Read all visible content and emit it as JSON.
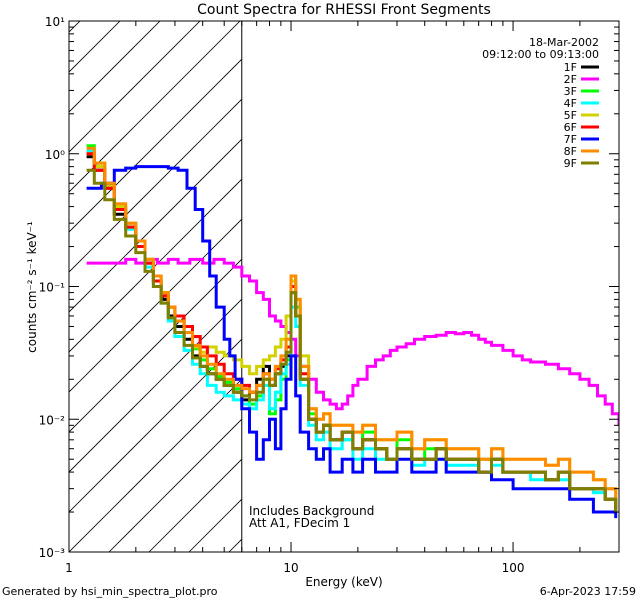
{
  "chart_data": {
    "type": "line",
    "title": "Count Spectra for RHESSI Front Segments",
    "xlabel": "Energy (keV)",
    "ylabel": "counts cm⁻² s⁻¹ keV⁻¹",
    "xscale": "log",
    "yscale": "log",
    "xlim": [
      1,
      300
    ],
    "ylim": [
      0.001,
      10
    ],
    "x_tick_labels": [
      "1",
      "10",
      "100"
    ],
    "y_tick_labels": [
      "10¹",
      "10⁰",
      "10⁻¹",
      "10⁻²",
      "10⁻³"
    ],
    "date": "18-Mar-2002",
    "time_range": "09:12:00 to 09:13:00",
    "attenuator_cutoff_kev": 6,
    "annotations": [
      "Includes Background",
      "Att A1, FDecim 1"
    ],
    "series": [
      {
        "name": "1F",
        "color": "#000000",
        "x": [
          1.2,
          1.3,
          1.45,
          1.6,
          1.8,
          2.0,
          2.2,
          2.4,
          2.6,
          2.8,
          3.0,
          3.3,
          3.6,
          3.9,
          4.2,
          4.6,
          5.0,
          5.5,
          6.0,
          6.5,
          7.0,
          7.5,
          8.0,
          8.5,
          9.0,
          9.5,
          10,
          10.5,
          11,
          12,
          13,
          14,
          15,
          17,
          19,
          21,
          24,
          27,
          30,
          35,
          40,
          45,
          50,
          60,
          70,
          80,
          90,
          100,
          120,
          140,
          160,
          180,
          200,
          230,
          260,
          290
        ],
        "y": [
          0.95,
          0.75,
          0.55,
          0.35,
          0.28,
          0.2,
          0.15,
          0.11,
          0.08,
          0.06,
          0.05,
          0.04,
          0.03,
          0.025,
          0.022,
          0.02,
          0.018,
          0.016,
          0.014,
          0.016,
          0.02,
          0.025,
          0.018,
          0.022,
          0.025,
          0.03,
          0.09,
          0.06,
          0.02,
          0.01,
          0.008,
          0.009,
          0.007,
          0.008,
          0.006,
          0.007,
          0.006,
          0.005,
          0.006,
          0.005,
          0.005,
          0.006,
          0.005,
          0.005,
          0.004,
          0.005,
          0.004,
          0.004,
          0.004,
          0.0035,
          0.004,
          0.003,
          0.003,
          0.003,
          0.0025,
          0.002
        ]
      },
      {
        "name": "2F",
        "color": "#ff00ff",
        "x": [
          1.2,
          1.4,
          1.6,
          1.8,
          2.0,
          2.2,
          2.5,
          2.8,
          3.1,
          3.5,
          4.0,
          4.5,
          5.0,
          5.5,
          6.0,
          6.5,
          7.0,
          7.5,
          8.0,
          8.5,
          9.0,
          9.5,
          10,
          10.5,
          11,
          12,
          13,
          14,
          15,
          16,
          17,
          18,
          19,
          20,
          22,
          24,
          26,
          28,
          30,
          33,
          36,
          40,
          45,
          50,
          55,
          60,
          65,
          70,
          75,
          80,
          90,
          100,
          110,
          120,
          140,
          160,
          180,
          200,
          220,
          240,
          260,
          280,
          300
        ],
        "y": [
          0.15,
          0.15,
          0.15,
          0.16,
          0.15,
          0.16,
          0.15,
          0.16,
          0.15,
          0.16,
          0.15,
          0.16,
          0.15,
          0.14,
          0.12,
          0.11,
          0.09,
          0.08,
          0.06,
          0.055,
          0.05,
          0.045,
          0.04,
          0.03,
          0.025,
          0.02,
          0.016,
          0.014,
          0.013,
          0.012,
          0.013,
          0.015,
          0.018,
          0.02,
          0.025,
          0.028,
          0.03,
          0.033,
          0.035,
          0.037,
          0.04,
          0.042,
          0.043,
          0.045,
          0.044,
          0.045,
          0.043,
          0.04,
          0.038,
          0.036,
          0.033,
          0.03,
          0.028,
          0.027,
          0.026,
          0.024,
          0.022,
          0.02,
          0.018,
          0.015,
          0.013,
          0.011,
          0.009
        ]
      },
      {
        "name": "3F",
        "color": "#00ff00",
        "x": [
          1.2,
          1.3,
          1.45,
          1.6,
          1.8,
          2.0,
          2.2,
          2.4,
          2.6,
          2.8,
          3.0,
          3.3,
          3.6,
          3.9,
          4.2,
          4.6,
          5.0,
          5.5,
          6.0,
          6.5,
          7.0,
          7.5,
          8.0,
          8.5,
          9.0,
          9.5,
          10,
          10.5,
          11,
          12,
          13,
          14,
          15,
          17,
          19,
          21,
          24,
          27,
          30,
          35,
          40,
          45,
          50,
          60,
          70,
          80,
          90,
          100,
          120,
          140,
          160,
          180,
          200,
          230,
          260,
          290
        ],
        "y": [
          1.15,
          0.85,
          0.6,
          0.4,
          0.3,
          0.22,
          0.16,
          0.12,
          0.09,
          0.07,
          0.055,
          0.045,
          0.034,
          0.028,
          0.024,
          0.021,
          0.019,
          0.017,
          0.015,
          0.013,
          0.015,
          0.02,
          0.011,
          0.014,
          0.02,
          0.028,
          0.12,
          0.07,
          0.025,
          0.011,
          0.008,
          0.009,
          0.007,
          0.007,
          0.006,
          0.008,
          0.006,
          0.005,
          0.007,
          0.005,
          0.006,
          0.006,
          0.005,
          0.005,
          0.005,
          0.005,
          0.004,
          0.004,
          0.004,
          0.0035,
          0.004,
          0.003,
          0.003,
          0.003,
          0.0025,
          0.0022
        ]
      },
      {
        "name": "4F",
        "color": "#00ffff",
        "x": [
          1.2,
          1.3,
          1.45,
          1.6,
          1.8,
          2.0,
          2.2,
          2.4,
          2.6,
          2.8,
          3.0,
          3.3,
          3.6,
          3.9,
          4.2,
          4.6,
          5.0,
          5.5,
          6.0,
          6.5,
          7.0,
          7.5,
          8.0,
          8.5,
          9.0,
          9.5,
          10,
          10.5,
          11,
          12,
          13,
          14,
          15,
          17,
          19,
          21,
          24,
          27,
          30,
          35,
          40,
          45,
          50,
          60,
          70,
          80,
          90,
          100,
          120,
          140,
          160,
          180,
          200,
          230,
          260,
          290
        ],
        "y": [
          1.05,
          0.8,
          0.58,
          0.38,
          0.27,
          0.2,
          0.14,
          0.1,
          0.075,
          0.055,
          0.042,
          0.033,
          0.026,
          0.022,
          0.018,
          0.016,
          0.015,
          0.014,
          0.013,
          0.012,
          0.014,
          0.018,
          0.012,
          0.016,
          0.022,
          0.026,
          0.07,
          0.05,
          0.018,
          0.009,
          0.007,
          0.008,
          0.006,
          0.007,
          0.005,
          0.006,
          0.005,
          0.005,
          0.006,
          0.0045,
          0.005,
          0.005,
          0.0045,
          0.0045,
          0.004,
          0.0045,
          0.004,
          0.004,
          0.0035,
          0.0035,
          0.0035,
          0.003,
          0.003,
          0.0028,
          0.0025,
          0.002
        ]
      },
      {
        "name": "5F",
        "color": "#d2d200",
        "x": [
          1.2,
          1.3,
          1.45,
          1.6,
          1.8,
          2.0,
          2.2,
          2.4,
          2.6,
          2.8,
          3.0,
          3.3,
          3.6,
          3.9,
          4.2,
          4.6,
          5.0,
          5.5,
          6.0,
          6.5,
          7.0,
          7.5,
          8.0,
          8.5,
          9.0,
          9.5,
          10,
          10.5,
          11,
          12,
          13,
          14,
          15,
          17,
          19,
          21,
          24,
          27,
          30,
          35,
          40,
          45,
          50,
          60,
          70,
          80,
          90,
          100,
          120,
          140,
          160,
          180,
          200,
          230,
          260,
          290
        ],
        "y": [
          1.0,
          0.8,
          0.58,
          0.4,
          0.3,
          0.22,
          0.16,
          0.12,
          0.09,
          0.07,
          0.055,
          0.045,
          0.035,
          0.032,
          0.035,
          0.032,
          0.03,
          0.028,
          0.025,
          0.022,
          0.025,
          0.028,
          0.03,
          0.035,
          0.04,
          0.06,
          0.11,
          0.08,
          0.03,
          0.012,
          0.01,
          0.011,
          0.009,
          0.009,
          0.008,
          0.009,
          0.007,
          0.007,
          0.008,
          0.006,
          0.007,
          0.007,
          0.006,
          0.006,
          0.005,
          0.006,
          0.005,
          0.005,
          0.005,
          0.0045,
          0.005,
          0.004,
          0.004,
          0.0035,
          0.003,
          0.0025
        ]
      },
      {
        "name": "6F",
        "color": "#ff0000",
        "x": [
          1.2,
          1.3,
          1.45,
          1.6,
          1.8,
          2.0,
          2.2,
          2.4,
          2.6,
          2.8,
          3.0,
          3.3,
          3.6,
          3.9,
          4.2,
          4.6,
          5.0,
          5.5,
          6.0,
          6.5,
          7.0,
          7.5,
          8.0,
          8.5,
          9.0,
          9.5,
          10,
          10.5,
          11,
          12,
          13,
          14,
          15,
          17,
          19,
          21,
          24,
          27,
          30,
          35,
          40,
          45,
          50,
          60,
          70,
          80,
          90,
          100,
          120,
          140,
          160,
          180,
          200,
          230,
          260,
          290
        ],
        "y": [
          1.0,
          0.75,
          0.55,
          0.38,
          0.28,
          0.2,
          0.15,
          0.11,
          0.085,
          0.07,
          0.06,
          0.05,
          0.042,
          0.035,
          0.03,
          0.026,
          0.022,
          0.02,
          0.018,
          0.016,
          0.018,
          0.022,
          0.02,
          0.024,
          0.028,
          0.035,
          0.1,
          0.06,
          0.022,
          0.01,
          0.008,
          0.009,
          0.007,
          0.008,
          0.006,
          0.007,
          0.006,
          0.005,
          0.006,
          0.005,
          0.005,
          0.006,
          0.005,
          0.005,
          0.004,
          0.005,
          0.004,
          0.004,
          0.004,
          0.0035,
          0.004,
          0.003,
          0.003,
          0.003,
          0.0025,
          0.002
        ]
      },
      {
        "name": "7F",
        "color": "#0000ff",
        "x": [
          1.2,
          1.4,
          1.6,
          1.8,
          2.0,
          2.2,
          2.5,
          2.8,
          3.1,
          3.4,
          3.7,
          4.0,
          4.3,
          4.6,
          5.0,
          5.3,
          5.6,
          6.0,
          6.5,
          7.0,
          7.5,
          8.0,
          8.5,
          9.0,
          9.5,
          10,
          10.5,
          11,
          12,
          13,
          14,
          15,
          17,
          19,
          21,
          24,
          27,
          30,
          35,
          40,
          45,
          50,
          60,
          70,
          80,
          90,
          100,
          120,
          140,
          160,
          180,
          200,
          230,
          260,
          290
        ],
        "y": [
          0.55,
          0.6,
          0.75,
          0.78,
          0.8,
          0.8,
          0.8,
          0.78,
          0.75,
          0.55,
          0.38,
          0.22,
          0.12,
          0.07,
          0.04,
          0.03,
          0.02,
          0.012,
          0.008,
          0.005,
          0.007,
          0.01,
          0.006,
          0.012,
          0.02,
          0.03,
          0.015,
          0.008,
          0.006,
          0.005,
          0.006,
          0.004,
          0.005,
          0.004,
          0.005,
          0.004,
          0.004,
          0.005,
          0.004,
          0.004,
          0.005,
          0.004,
          0.004,
          0.004,
          0.0035,
          0.0035,
          0.003,
          0.003,
          0.003,
          0.003,
          0.0025,
          0.0025,
          0.002,
          0.002,
          0.0018
        ]
      },
      {
        "name": "8F",
        "color": "#ff8c00",
        "x": [
          1.2,
          1.3,
          1.45,
          1.6,
          1.8,
          2.0,
          2.2,
          2.4,
          2.6,
          2.8,
          3.0,
          3.3,
          3.6,
          3.9,
          4.2,
          4.6,
          5.0,
          5.5,
          6.0,
          6.5,
          7.0,
          7.5,
          8.0,
          8.5,
          9.0,
          9.5,
          10,
          10.5,
          11,
          12,
          13,
          14,
          15,
          17,
          19,
          21,
          24,
          27,
          30,
          35,
          40,
          45,
          50,
          60,
          70,
          80,
          90,
          100,
          120,
          140,
          160,
          180,
          200,
          230,
          260,
          290
        ],
        "y": [
          1.1,
          0.85,
          0.6,
          0.42,
          0.3,
          0.22,
          0.16,
          0.12,
          0.09,
          0.07,
          0.055,
          0.045,
          0.036,
          0.03,
          0.026,
          0.022,
          0.02,
          0.018,
          0.017,
          0.016,
          0.018,
          0.022,
          0.02,
          0.025,
          0.03,
          0.04,
          0.12,
          0.08,
          0.025,
          0.012,
          0.01,
          0.011,
          0.009,
          0.009,
          0.008,
          0.009,
          0.007,
          0.007,
          0.008,
          0.006,
          0.007,
          0.007,
          0.006,
          0.006,
          0.005,
          0.006,
          0.005,
          0.005,
          0.005,
          0.0045,
          0.005,
          0.004,
          0.004,
          0.0035,
          0.003,
          0.0025
        ]
      },
      {
        "name": "9F",
        "color": "#808000",
        "x": [
          1.2,
          1.3,
          1.45,
          1.6,
          1.8,
          2.0,
          2.2,
          2.4,
          2.6,
          2.8,
          3.0,
          3.3,
          3.6,
          3.9,
          4.2,
          4.6,
          5.0,
          5.5,
          6.0,
          6.5,
          7.0,
          7.5,
          8.0,
          8.5,
          9.0,
          9.5,
          10,
          10.5,
          11,
          12,
          13,
          14,
          15,
          17,
          19,
          21,
          24,
          27,
          30,
          35,
          40,
          45,
          50,
          60,
          70,
          80,
          90,
          100,
          120,
          140,
          160,
          180,
          200,
          230,
          260,
          290
        ],
        "y": [
          0.75,
          0.6,
          0.45,
          0.32,
          0.24,
          0.18,
          0.13,
          0.1,
          0.075,
          0.058,
          0.045,
          0.036,
          0.029,
          0.025,
          0.022,
          0.02,
          0.018,
          0.016,
          0.015,
          0.014,
          0.016,
          0.02,
          0.018,
          0.022,
          0.026,
          0.032,
          0.09,
          0.06,
          0.02,
          0.01,
          0.008,
          0.009,
          0.007,
          0.008,
          0.006,
          0.007,
          0.006,
          0.005,
          0.006,
          0.005,
          0.005,
          0.006,
          0.005,
          0.005,
          0.004,
          0.005,
          0.004,
          0.004,
          0.004,
          0.0035,
          0.004,
          0.003,
          0.003,
          0.003,
          0.0025,
          0.002
        ]
      }
    ]
  },
  "footer": {
    "left": "Generated by hsi_min_spectra_plot.pro",
    "right": "6-Apr-2023 17:59"
  }
}
